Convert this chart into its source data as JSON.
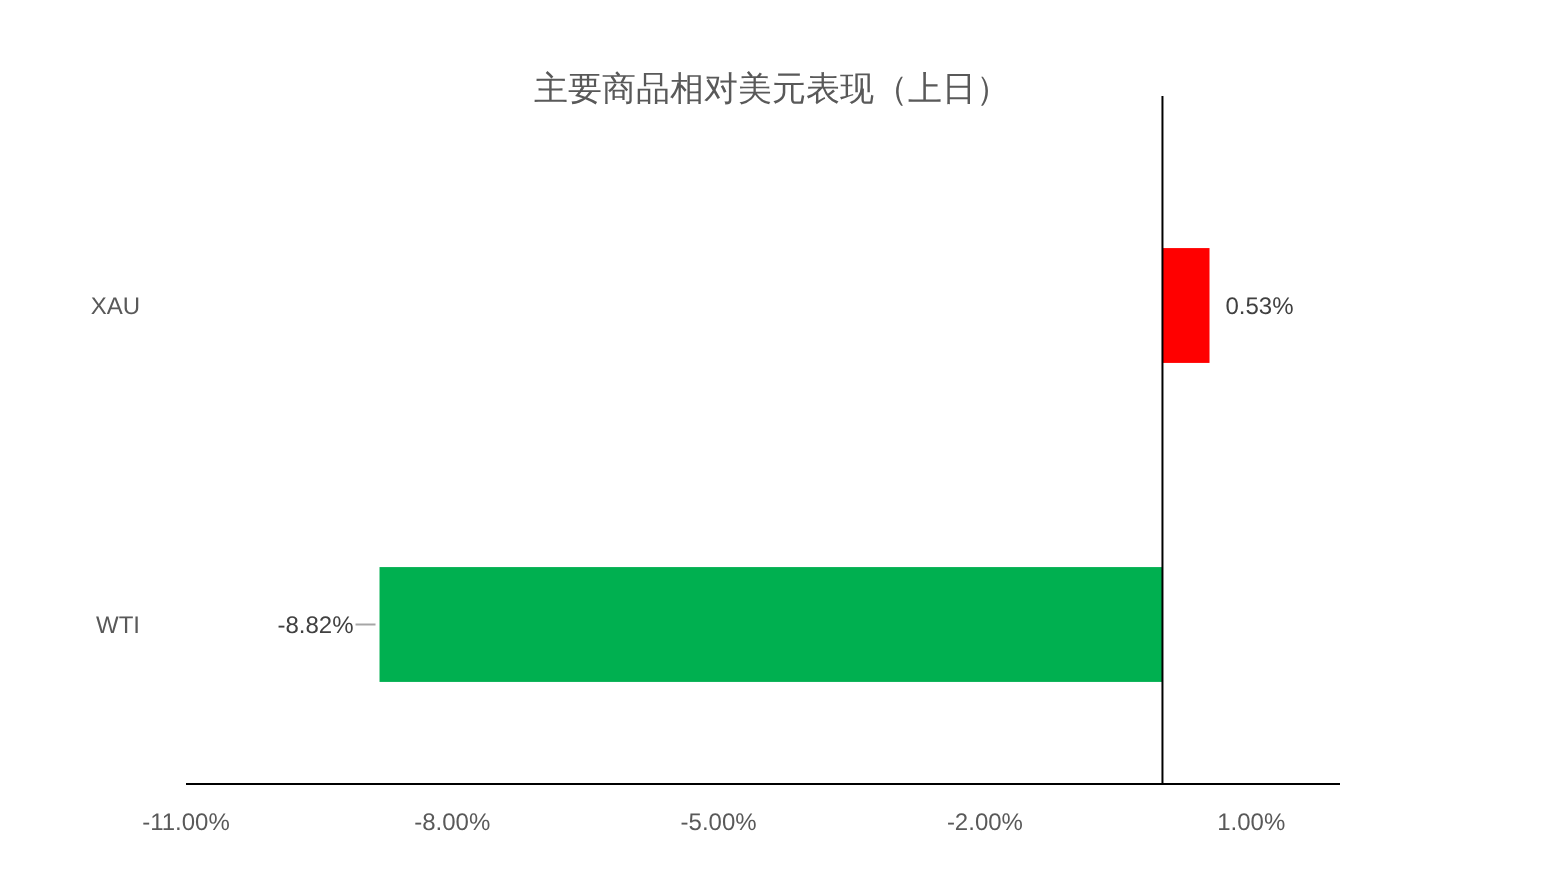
{
  "chart_data": {
    "type": "bar",
    "orientation": "horizontal",
    "title": "主要商品相对美元表现（上日）",
    "categories": [
      "XAU",
      "WTI"
    ],
    "values": [
      0.53,
      -8.82
    ],
    "colors": [
      "#ff0000",
      "#00b050"
    ],
    "value_labels": [
      "0.53%",
      "-8.82%"
    ],
    "xlim": [
      -11,
      2
    ],
    "xticks": [
      {
        "value": -11,
        "label": "-11.00%"
      },
      {
        "value": -8,
        "label": "-8.00%"
      },
      {
        "value": -5,
        "label": "-5.00%"
      },
      {
        "value": -2,
        "label": "-2.00%"
      },
      {
        "value": 1,
        "label": "1.00%"
      }
    ],
    "grid": false
  }
}
